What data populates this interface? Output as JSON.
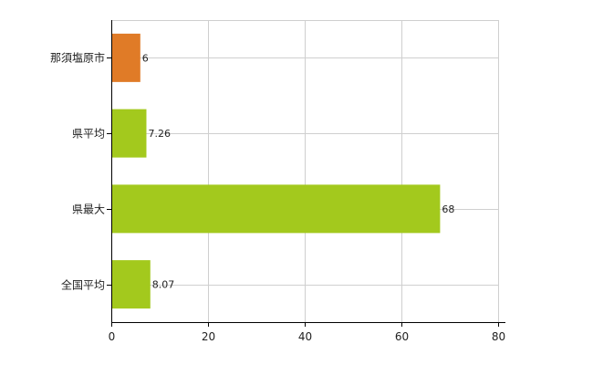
{
  "chart_data": {
    "type": "bar",
    "orientation": "horizontal",
    "categories": [
      "那須塩原市",
      "県平均",
      "県最大",
      "全国平均"
    ],
    "values": [
      6,
      7.26,
      68,
      8.07
    ],
    "value_labels": [
      "6",
      "7.26",
      "68",
      "8.07"
    ],
    "bar_colors": [
      "#e07b27",
      "#a3c91d",
      "#a3c91d",
      "#a3c91d"
    ],
    "xlim": [
      0,
      80
    ],
    "x_ticks": [
      0,
      20,
      40,
      60,
      80
    ],
    "x_tick_labels": [
      "0",
      "20",
      "40",
      "60",
      "80"
    ],
    "grid": true,
    "title": "",
    "xlabel": "",
    "ylabel": ""
  }
}
